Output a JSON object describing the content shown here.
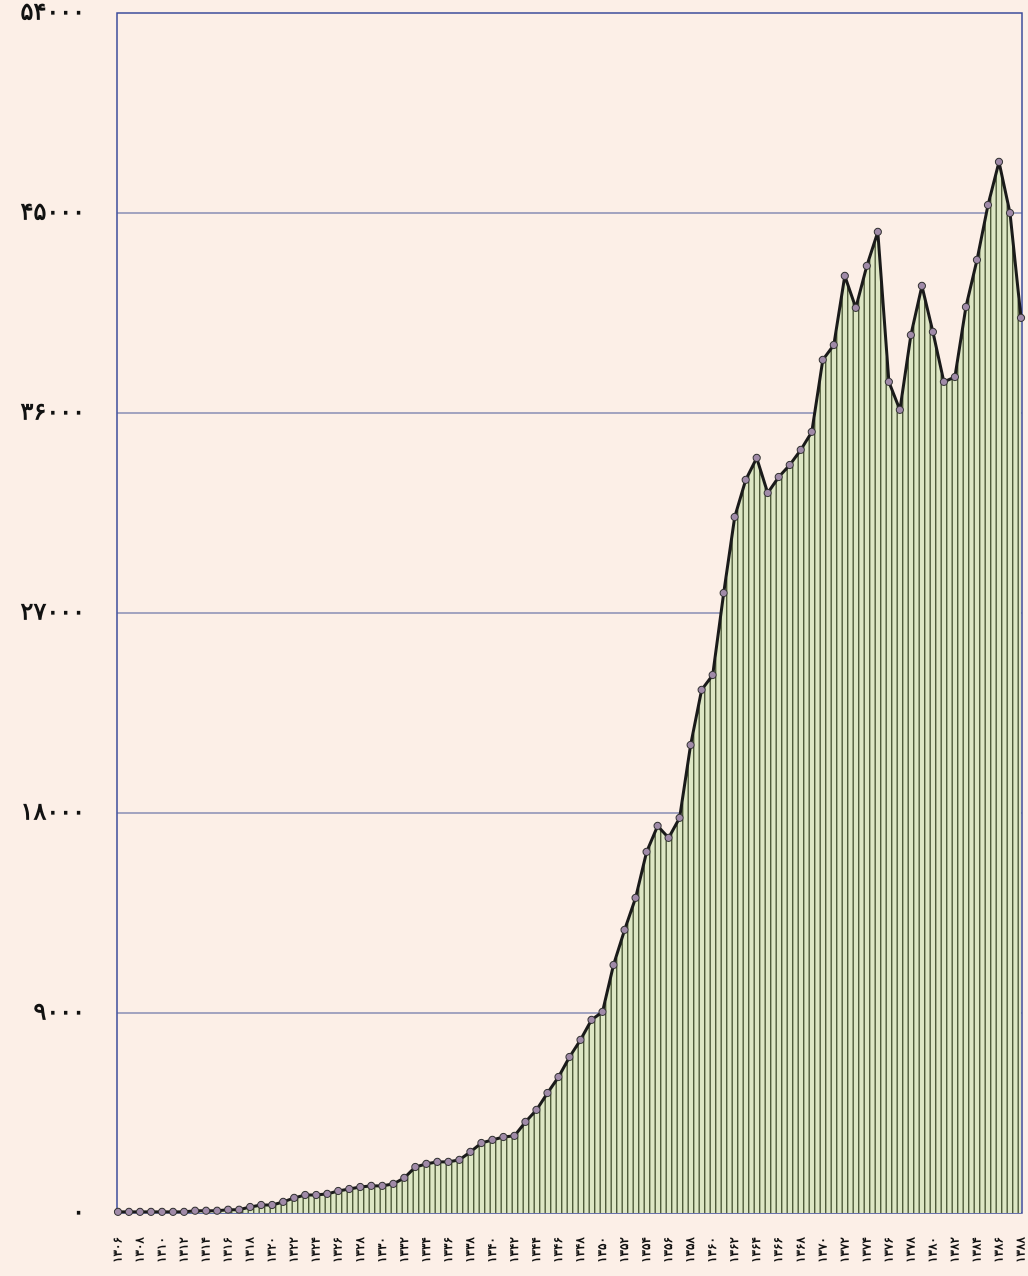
{
  "chart_data": {
    "type": "area",
    "categories": [
      "۱۳۰۶",
      null,
      "۱۳۰۸",
      null,
      "۱۳۱۰",
      null,
      "۱۳۱۲",
      null,
      "۱۳۱۴",
      null,
      "۱۳۱۶",
      null,
      "۱۳۱۸",
      null,
      "۱۳۲۰",
      null,
      "۱۳۲۲",
      null,
      "۱۳۲۴",
      null,
      "۱۳۲۶",
      null,
      "۱۳۲۸",
      null,
      "۱۳۳۰",
      null,
      "۱۳۳۲",
      null,
      "۱۳۳۴",
      null,
      "۱۳۳۶",
      null,
      "۱۳۳۸",
      null,
      "۱۳۴۰",
      null,
      "۱۳۴۲",
      null,
      "۱۳۴۴",
      null,
      "۱۳۴۶",
      null,
      "۱۳۴۸",
      null,
      "۱۳۵۰",
      null,
      "۱۳۵۲",
      null,
      "۱۳۵۴",
      null,
      "۱۳۵۶",
      null,
      "۱۳۵۸",
      null,
      "۱۳۶۰",
      null,
      "۱۳۶۲",
      null,
      "۱۳۶۴",
      null,
      "۱۳۶۶",
      null,
      "۱۳۶۸",
      null,
      "۱۳۷۰",
      null,
      "۱۳۷۲",
      null,
      "۱۳۷۴",
      null,
      "۱۳۷۶",
      null,
      "۱۳۷۸",
      null,
      "۱۳۸۰",
      null,
      "۱۳۸۲",
      null,
      "۱۳۸۴",
      null,
      "۱۳۸۶",
      null,
      "۱۳۸۸"
    ],
    "values": [
      50,
      50,
      50,
      50,
      50,
      50,
      50,
      100,
      100,
      100,
      150,
      150,
      270,
      360,
      360,
      500,
      680,
      810,
      810,
      860,
      990,
      1080,
      1170,
      1220,
      1220,
      1310,
      1580,
      2070,
      2210,
      2300,
      2300,
      2390,
      2750,
      3150,
      3290,
      3420,
      3470,
      4100,
      4640,
      5400,
      6120,
      7020,
      7790,
      8690,
      9050,
      11160,
      12740,
      14180,
      16250,
      17420,
      16880,
      17780,
      21060,
      23540,
      24210,
      27900,
      31320,
      32990,
      33980,
      32400,
      33120,
      33660,
      34340,
      35150,
      38390,
      39060,
      42170,
      40730,
      42620,
      44150,
      37400,
      36140,
      39510,
      41720,
      39650,
      37400,
      37620,
      40770,
      42890,
      45360,
      47300,
      45000,
      40280
    ],
    "color": "#1a1a1a",
    "fill": "#dde6c4",
    "marker_color": "#a08aa8",
    "ylim": [
      0,
      54000
    ],
    "yticks": [
      {
        "value": 0,
        "label": "۰"
      },
      {
        "value": 9000,
        "label": "۹۰۰۰"
      },
      {
        "value": 18000,
        "label": "۱۸۰۰۰"
      },
      {
        "value": 27000,
        "label": "۲۷۰۰۰"
      },
      {
        "value": 36000,
        "label": "۳۶۰۰۰"
      },
      {
        "value": 45000,
        "label": "۴۵۰۰۰"
      },
      {
        "value": 54000,
        "label": "۵۴۰۰۰"
      }
    ],
    "grid": true
  }
}
